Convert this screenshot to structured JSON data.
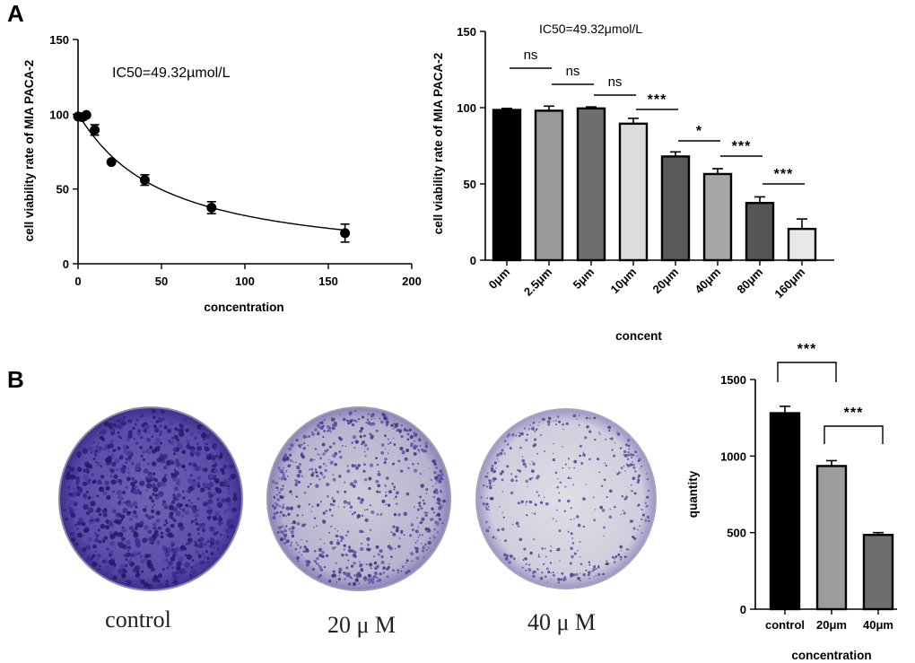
{
  "panels": {
    "a_label": "A",
    "b_label": "B"
  },
  "chart_data": [
    {
      "type": "scatter",
      "id": "dose_response_curve",
      "title": "",
      "annotation": "IC50=49.32µmol/L",
      "xlabel": "concentration",
      "ylabel": "cell viability rate of MIA PACA-2",
      "xlim": [
        0,
        200
      ],
      "ylim": [
        0,
        150
      ],
      "xticks": [
        0,
        50,
        100,
        150,
        200
      ],
      "yticks": [
        0,
        50,
        100,
        150
      ],
      "points": [
        {
          "x": 0,
          "y": 98.5,
          "err": 1
        },
        {
          "x": 2.5,
          "y": 98,
          "err": 2
        },
        {
          "x": 5,
          "y": 99.5,
          "err": 1
        },
        {
          "x": 10,
          "y": 89.5,
          "err": 3.5
        },
        {
          "x": 20,
          "y": 68,
          "err": 1
        },
        {
          "x": 40,
          "y": 56,
          "err": 3.5
        },
        {
          "x": 80,
          "y": 37.5,
          "err": 4
        },
        {
          "x": 160,
          "y": 20.5,
          "err": 6
        }
      ],
      "fit_curve": true
    },
    {
      "type": "bar",
      "id": "viability_bars",
      "title": "IC50=49.32μmol/L",
      "xlabel": "concent",
      "ylabel": "cell viability rate of MIA PACA-2",
      "ylim": [
        0,
        150
      ],
      "yticks": [
        0,
        50,
        100,
        150
      ],
      "categories": [
        "0μm",
        "2.5μm",
        "5μm",
        "10μm",
        "20μm",
        "40μm",
        "80μm",
        "160μm"
      ],
      "values": [
        98.5,
        98,
        99.5,
        89.5,
        68,
        56.5,
        37.5,
        20.5
      ],
      "errors": [
        1,
        3,
        1,
        3.5,
        3,
        3.5,
        4,
        6.5
      ],
      "colors": [
        "#000000",
        "#9a9a9a",
        "#6e6e6e",
        "#dcdcdc",
        "#5a5a5a",
        "#a6a6a6",
        "#555555",
        "#e8e8e8"
      ],
      "comparisons": [
        {
          "from": 0,
          "to": 1,
          "label": "ns"
        },
        {
          "from": 1,
          "to": 2,
          "label": "ns"
        },
        {
          "from": 2,
          "to": 3,
          "label": "ns"
        },
        {
          "from": 3,
          "to": 4,
          "label": "***"
        },
        {
          "from": 4,
          "to": 5,
          "label": "*"
        },
        {
          "from": 5,
          "to": 6,
          "label": "***"
        },
        {
          "from": 6,
          "to": 7,
          "label": "***"
        }
      ]
    },
    {
      "type": "bar",
      "id": "colony_quantity",
      "title": "",
      "xlabel": "concentration",
      "ylabel": "quantity",
      "ylim": [
        0,
        1500
      ],
      "yticks": [
        0,
        500,
        1000,
        1500
      ],
      "categories": [
        "control",
        "20μm",
        "40μm"
      ],
      "values": [
        1280,
        935,
        485
      ],
      "errors": [
        45,
        35,
        15
      ],
      "colors": [
        "#000000",
        "#9c9c9c",
        "#6e6e6e"
      ],
      "comparisons": [
        {
          "from": 0,
          "to": 1,
          "label": "***"
        },
        {
          "from": 1,
          "to": 2,
          "label": "***"
        }
      ]
    }
  ],
  "dishes": [
    {
      "caption": "control",
      "density": "high"
    },
    {
      "caption": "20 μ M",
      "density": "medium"
    },
    {
      "caption": "40 μ M",
      "density": "low"
    }
  ]
}
